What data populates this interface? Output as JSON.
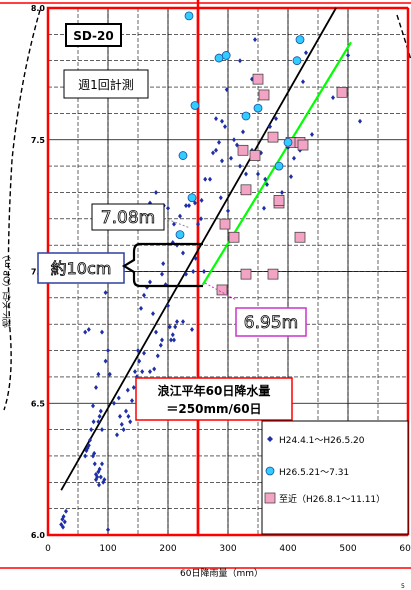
{
  "chart_data": {
    "type": "scatter",
    "xlabel": "60日降雨量（mm）",
    "ylabel": "地下水位（OP,m）",
    "xlim": [
      0,
      600
    ],
    "ylim": [
      6.0,
      8.0
    ],
    "x_ticks": [
      "0",
      "100",
      "200",
      "300",
      "400",
      "500",
      "600"
    ],
    "y_ticks": [
      "6.0",
      "6.5",
      "7.0",
      "7.5",
      "8.0"
    ],
    "grid": true,
    "legend_position": "bottom-right",
    "colors": {
      "series1": "#1f2fa8",
      "series2": "#33ccff",
      "series3": "#f3a4c4",
      "frame": "#ff0000",
      "reg1": "#000000",
      "reg2": "#00ff00"
    },
    "title_box": "SD-20",
    "measure_box": "週1回計測",
    "annotations": {
      "upper_value": "7.08m",
      "lower_value": "6.95m",
      "difference": "約10cm",
      "rain_line_line1": "浪江平年60日降水量",
      "rain_line_line2": "＝250mm/60日",
      "rain_line_x": 250
    },
    "series": [
      {
        "name": "H24.4.1～H26.5.20",
        "marker": "diamond",
        "points": [
          [
            22,
            6.04
          ],
          [
            24,
            6.06
          ],
          [
            26,
            6.07
          ],
          [
            28,
            6.05
          ],
          [
            30,
            6.09
          ],
          [
            25,
            6.03
          ],
          [
            62,
            6.3
          ],
          [
            64,
            6.32
          ],
          [
            66,
            6.33
          ],
          [
            68,
            6.34
          ],
          [
            70,
            6.36
          ],
          [
            72,
            6.4
          ],
          [
            75,
            6.3
          ],
          [
            77,
            6.31
          ],
          [
            78,
            6.27
          ],
          [
            80,
            6.23
          ],
          [
            80,
            6.21
          ],
          [
            82,
            6.22
          ],
          [
            84,
            6.24
          ],
          [
            85,
            6.19
          ],
          [
            86,
            6.25
          ],
          [
            88,
            6.22
          ],
          [
            90,
            6.27
          ],
          [
            92,
            6.2
          ],
          [
            94,
            6.21
          ],
          [
            84,
            6.43
          ],
          [
            86,
            6.45
          ],
          [
            88,
            6.47
          ],
          [
            90,
            6.4
          ],
          [
            76,
            6.43
          ],
          [
            75,
            6.49
          ],
          [
            80,
            6.56
          ],
          [
            84,
            6.61
          ],
          [
            96,
            6.66
          ],
          [
            100,
            6.7
          ],
          [
            103,
            6.61
          ],
          [
            110,
            6.5
          ],
          [
            115,
            6.38
          ],
          [
            118,
            6.52
          ],
          [
            120,
            6.45
          ],
          [
            123,
            6.42
          ],
          [
            126,
            6.4
          ],
          [
            130,
            6.47
          ],
          [
            133,
            6.55
          ],
          [
            134,
            6.45
          ],
          [
            137,
            6.43
          ],
          [
            140,
            6.51
          ],
          [
            143,
            6.56
          ],
          [
            145,
            6.62
          ],
          [
            148,
            6.6
          ],
          [
            150,
            6.7
          ],
          [
            152,
            6.66
          ],
          [
            157,
            6.62
          ],
          [
            160,
            6.69
          ],
          [
            164,
            6.58
          ],
          [
            170,
            6.62
          ],
          [
            177,
            6.63
          ],
          [
            180,
            6.77
          ],
          [
            183,
            6.68
          ],
          [
            188,
            6.72
          ],
          [
            190,
            6.74
          ],
          [
            155,
            6.86
          ],
          [
            160,
            6.91
          ],
          [
            165,
            6.94
          ],
          [
            170,
            6.96
          ],
          [
            175,
            6.84
          ],
          [
            62,
            6.77
          ],
          [
            68,
            6.78
          ],
          [
            90,
            6.77
          ],
          [
            96,
            6.92
          ],
          [
            190,
            6.99
          ],
          [
            192,
            7.03
          ],
          [
            196,
            6.95
          ],
          [
            200,
            6.87
          ],
          [
            203,
            6.79
          ],
          [
            205,
            6.74
          ],
          [
            208,
            6.76
          ],
          [
            210,
            6.74
          ],
          [
            212,
            6.79
          ],
          [
            215,
            6.81
          ],
          [
            225,
            6.81
          ],
          [
            240,
            6.78
          ],
          [
            230,
            6.99
          ],
          [
            242,
            7.0
          ],
          [
            246,
            7.05
          ],
          [
            170,
            7.26
          ],
          [
            180,
            7.3
          ],
          [
            193,
            7.25
          ],
          [
            200,
            7.24
          ],
          [
            208,
            7.11
          ],
          [
            210,
            7.18
          ],
          [
            215,
            7.1
          ],
          [
            220,
            7.21
          ],
          [
            225,
            7.07
          ],
          [
            230,
            7.25
          ],
          [
            235,
            7.25
          ],
          [
            240,
            7.29
          ],
          [
            245,
            7.26
          ],
          [
            250,
            7.18
          ],
          [
            255,
            7.2
          ],
          [
            256,
            7.27
          ],
          [
            260,
            7.0
          ],
          [
            262,
            7.35
          ],
          [
            270,
            7.35
          ],
          [
            275,
            7.45
          ],
          [
            280,
            7.46
          ],
          [
            280,
            7.58
          ],
          [
            285,
            7.49
          ],
          [
            288,
            7.28
          ],
          [
            290,
            7.57
          ],
          [
            290,
            7.42
          ],
          [
            295,
            7.55
          ],
          [
            298,
            7.69
          ],
          [
            305,
            7.43
          ],
          [
            310,
            7.5
          ],
          [
            315,
            7.48
          ],
          [
            320,
            7.4
          ],
          [
            320,
            7.8
          ],
          [
            325,
            7.53
          ],
          [
            330,
            7.37
          ],
          [
            340,
            7.46
          ],
          [
            345,
            7.88
          ],
          [
            350,
            7.37
          ],
          [
            355,
            7.45
          ],
          [
            360,
            7.24
          ],
          [
            362,
            7.35
          ],
          [
            365,
            7.33
          ],
          [
            370,
            7.55
          ],
          [
            380,
            7.58
          ],
          [
            385,
            7.4
          ],
          [
            390,
            7.3
          ],
          [
            400,
            7.47
          ],
          [
            405,
            7.36
          ],
          [
            410,
            7.43
          ],
          [
            420,
            7.46
          ],
          [
            425,
            7.72
          ],
          [
            430,
            7.83
          ],
          [
            440,
            7.52
          ],
          [
            475,
            7.66
          ],
          [
            500,
            7.82
          ],
          [
            520,
            7.57
          ],
          [
            340,
            7.73
          ],
          [
            300,
            7.23
          ],
          [
            100,
            6.02
          ]
        ]
      },
      {
        "name": "H26.5.21～7.31",
        "marker": "circle",
        "points": [
          [
            235,
            7.97
          ],
          [
            285,
            7.81
          ],
          [
            297,
            7.82
          ],
          [
            415,
            7.8
          ],
          [
            420,
            7.88
          ],
          [
            245,
            7.63
          ],
          [
            350,
            7.62
          ],
          [
            330,
            7.59
          ],
          [
            400,
            7.49
          ],
          [
            385,
            7.4
          ],
          [
            225,
            7.44
          ],
          [
            240,
            7.28
          ],
          [
            220,
            7.14
          ]
        ]
      },
      {
        "name": "至近（H26.8.1～11.11）",
        "marker": "square",
        "points": [
          [
            350,
            7.73
          ],
          [
            360,
            7.67
          ],
          [
            325,
            7.46
          ],
          [
            345,
            7.44
          ],
          [
            375,
            7.51
          ],
          [
            405,
            7.49
          ],
          [
            420,
            7.49
          ],
          [
            425,
            7.48
          ],
          [
            490,
            7.68
          ],
          [
            330,
            7.31
          ],
          [
            385,
            7.26
          ],
          [
            385,
            7.27
          ],
          [
            295,
            7.18
          ],
          [
            310,
            7.13
          ],
          [
            420,
            7.13
          ],
          [
            330,
            6.99
          ],
          [
            375,
            6.99
          ],
          [
            290,
            6.93
          ]
        ]
      }
    ],
    "regressions": [
      {
        "points": [
          [
            22,
            6.17
          ],
          [
            480,
            8.0
          ]
        ]
      },
      {
        "points": [
          [
            258,
            6.95
          ],
          [
            505,
            7.87
          ]
        ]
      }
    ]
  }
}
